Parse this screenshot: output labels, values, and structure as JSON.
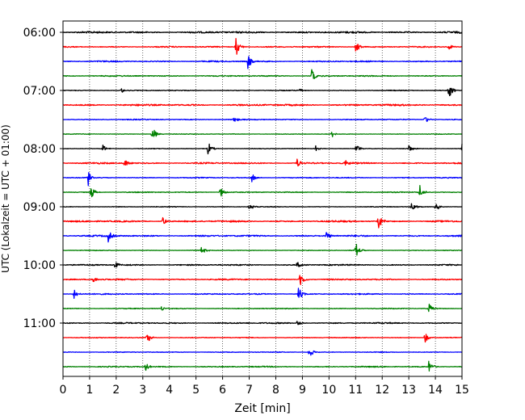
{
  "chart_data": {
    "type": "line",
    "title": "",
    "xlabel": "Zeit  [min]",
    "ylabel": "UTC (Lokalzeit = UTC + 01:00)",
    "xlim": [
      0,
      15
    ],
    "x_ticks": [
      "0",
      "1",
      "2",
      "3",
      "4",
      "5",
      "6",
      "7",
      "8",
      "9",
      "10",
      "11",
      "12",
      "13",
      "14",
      "15"
    ],
    "y_tick_labels": [
      "06:00",
      "07:00",
      "08:00",
      "09:00",
      "10:00",
      "11:00"
    ],
    "trace_interval_min": 15,
    "start_time": "06:00",
    "grid": "vertical dotted lines at each minute",
    "colors_cycle": [
      "#000000",
      "#ff0000",
      "#0000ff",
      "#008000"
    ],
    "series": [
      {
        "time": "06:00",
        "color": "#000000",
        "events": []
      },
      {
        "time": "06:15",
        "color": "#ff0000",
        "events": [
          {
            "x": 6.5,
            "amp": 1.4
          },
          {
            "x": 11.0,
            "amp": 0.9
          },
          {
            "x": 14.5,
            "amp": 0.5
          }
        ]
      },
      {
        "time": "06:30",
        "color": "#0000ff",
        "events": [
          {
            "x": 6.95,
            "amp": 1.1
          }
        ]
      },
      {
        "time": "06:45",
        "color": "#008000",
        "events": [
          {
            "x": 9.35,
            "amp": 0.9
          }
        ]
      },
      {
        "time": "07:00",
        "color": "#000000",
        "events": [
          {
            "x": 2.2,
            "amp": 0.3
          },
          {
            "x": 8.9,
            "amp": 0.3
          },
          {
            "x": 14.5,
            "amp": 1.2
          }
        ]
      },
      {
        "time": "07:15",
        "color": "#ff0000",
        "events": []
      },
      {
        "time": "07:30",
        "color": "#0000ff",
        "events": [
          {
            "x": 6.4,
            "amp": 0.5
          },
          {
            "x": 13.6,
            "amp": 0.6
          }
        ]
      },
      {
        "time": "07:45",
        "color": "#008000",
        "events": [
          {
            "x": 3.35,
            "amp": 1.2
          },
          {
            "x": 10.1,
            "amp": 0.6
          }
        ]
      },
      {
        "time": "08:00",
        "color": "#000000",
        "events": [
          {
            "x": 1.5,
            "amp": 0.5
          },
          {
            "x": 5.45,
            "amp": 1.0
          },
          {
            "x": 9.5,
            "amp": 0.4
          },
          {
            "x": 11.0,
            "amp": 0.7
          },
          {
            "x": 13.0,
            "amp": 0.5
          },
          {
            "x": 15.0,
            "amp": 0.7
          }
        ]
      },
      {
        "time": "08:15",
        "color": "#ff0000",
        "events": [
          {
            "x": 2.3,
            "amp": 0.6
          },
          {
            "x": 8.8,
            "amp": 0.7
          },
          {
            "x": 10.6,
            "amp": 0.5
          }
        ]
      },
      {
        "time": "08:30",
        "color": "#0000ff",
        "events": [
          {
            "x": 0.95,
            "amp": 1.2
          },
          {
            "x": 7.1,
            "amp": 0.6
          }
        ]
      },
      {
        "time": "08:45",
        "color": "#008000",
        "events": [
          {
            "x": 1.05,
            "amp": 1.1
          },
          {
            "x": 5.9,
            "amp": 0.9
          },
          {
            "x": 13.4,
            "amp": 1.1
          }
        ]
      },
      {
        "time": "09:00",
        "color": "#000000",
        "events": [
          {
            "x": 7.0,
            "amp": 0.6
          },
          {
            "x": 13.1,
            "amp": 1.0
          },
          {
            "x": 14.0,
            "amp": 0.8
          }
        ]
      },
      {
        "time": "09:15",
        "color": "#ff0000",
        "events": [
          {
            "x": 3.75,
            "amp": 0.6
          },
          {
            "x": 11.85,
            "amp": 1.3
          }
        ]
      },
      {
        "time": "09:30",
        "color": "#0000ff",
        "events": [
          {
            "x": 1.7,
            "amp": 0.8
          },
          {
            "x": 9.9,
            "amp": 0.6
          }
        ]
      },
      {
        "time": "09:45",
        "color": "#008000",
        "events": [
          {
            "x": 5.2,
            "amp": 0.6
          },
          {
            "x": 11.0,
            "amp": 1.1
          }
        ]
      },
      {
        "time": "10:00",
        "color": "#000000",
        "events": [
          {
            "x": 1.95,
            "amp": 0.6
          },
          {
            "x": 8.8,
            "amp": 0.8
          }
        ]
      },
      {
        "time": "10:15",
        "color": "#ff0000",
        "events": [
          {
            "x": 1.1,
            "amp": 0.6
          },
          {
            "x": 8.9,
            "amp": 1.2
          }
        ]
      },
      {
        "time": "10:30",
        "color": "#0000ff",
        "events": [
          {
            "x": 0.4,
            "amp": 0.8
          },
          {
            "x": 8.85,
            "amp": 1.0
          }
        ]
      },
      {
        "time": "10:45",
        "color": "#008000",
        "events": [
          {
            "x": 3.7,
            "amp": 0.4
          },
          {
            "x": 13.75,
            "amp": 0.8
          }
        ]
      },
      {
        "time": "11:00",
        "color": "#000000",
        "events": [
          {
            "x": 8.8,
            "amp": 0.5
          }
        ]
      },
      {
        "time": "11:15",
        "color": "#ff0000",
        "events": [
          {
            "x": 3.15,
            "amp": 0.9
          },
          {
            "x": 13.6,
            "amp": 0.8
          }
        ]
      },
      {
        "time": "11:30",
        "color": "#0000ff",
        "events": [
          {
            "x": 9.25,
            "amp": 0.9
          }
        ]
      },
      {
        "time": "11:45",
        "color": "#008000",
        "events": [
          {
            "x": 3.1,
            "amp": 0.6
          },
          {
            "x": 13.75,
            "amp": 0.8
          }
        ]
      }
    ]
  }
}
